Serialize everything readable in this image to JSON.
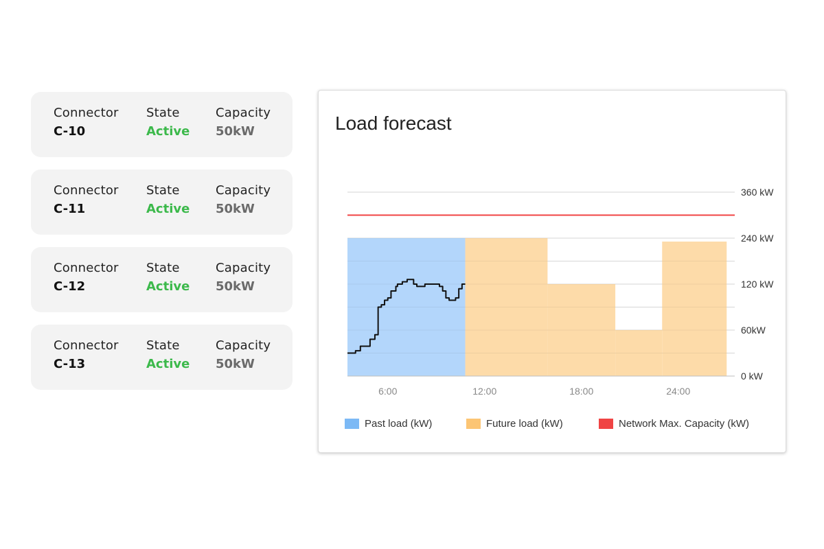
{
  "connectors": [
    {
      "connector_label": "Connector",
      "id": "C-10",
      "state_label": "State",
      "state": "Active",
      "capacity_label": "Capacity",
      "capacity": "50kW"
    },
    {
      "connector_label": "Connector",
      "id": "C-11",
      "state_label": "State",
      "state": "Active",
      "capacity_label": "Capacity",
      "capacity": "50kW"
    },
    {
      "connector_label": "Connector",
      "id": "C-12",
      "state_label": "State",
      "state": "Active",
      "capacity_label": "Capacity",
      "capacity": "50kW"
    },
    {
      "connector_label": "Connector",
      "id": "C-13",
      "state_label": "State",
      "state": "Active",
      "capacity_label": "Capacity",
      "capacity": "50kW"
    }
  ],
  "colors": {
    "active": "#3cb94b",
    "capacity_value": "#6a6a6a",
    "past": "#b3d6fb",
    "future": "#fddba9",
    "past_legend": "#7cb9f5",
    "future_legend": "#fcc574",
    "network": "#f04444",
    "load_line": "#111111"
  },
  "chart": {
    "title": "Load forecast",
    "legend": [
      "Past load (kW)",
      "Future load (kW)",
      "Network Max. Capacity (kW)"
    ],
    "chart_data": {
      "type": "area",
      "x_range_hours": [
        3.5,
        27.5
      ],
      "x_ticks": [
        {
          "value": 6,
          "label": "6:00"
        },
        {
          "value": 12,
          "label": "12:00"
        },
        {
          "value": 18,
          "label": "18:00"
        },
        {
          "value": 24,
          "label": "24:00"
        }
      ],
      "y_ticks": [
        {
          "label": "0 kW"
        },
        {
          "label": "60kW"
        },
        {
          "label": "120 kW"
        },
        {
          "label": "240 kW"
        },
        {
          "label": "360 kW"
        }
      ],
      "network_max_capacity_level": 7,
      "past_load_band": {
        "x_start": 3.5,
        "x_end": 10.8,
        "level": 6
      },
      "future_load_steps": [
        {
          "x_start": 10.8,
          "x_end": 15.9,
          "level": 6
        },
        {
          "x_start": 15.9,
          "x_end": 20.1,
          "level": 4
        },
        {
          "x_start": 20.1,
          "x_end": 23.0,
          "level": 2
        },
        {
          "x_start": 23.0,
          "x_end": 27.0,
          "level": 5.85
        }
      ],
      "past_load_line_levels": [
        [
          3.5,
          1.0
        ],
        [
          3.8,
          1.0
        ],
        [
          4.0,
          1.1
        ],
        [
          4.3,
          1.3
        ],
        [
          4.6,
          1.3
        ],
        [
          4.8,
          1.3
        ],
        [
          4.9,
          1.6
        ],
        [
          5.1,
          1.6
        ],
        [
          5.2,
          1.8
        ],
        [
          5.4,
          1.8
        ],
        [
          5.4,
          3.0
        ],
        [
          5.6,
          3.1
        ],
        [
          5.8,
          3.3
        ],
        [
          5.9,
          3.3
        ],
        [
          6.0,
          3.4
        ],
        [
          6.2,
          3.4
        ],
        [
          6.2,
          3.7
        ],
        [
          6.4,
          3.7
        ],
        [
          6.5,
          3.9
        ],
        [
          6.6,
          4.0
        ],
        [
          6.8,
          4.0
        ],
        [
          6.9,
          4.1
        ],
        [
          7.1,
          4.1
        ],
        [
          7.2,
          4.2
        ],
        [
          7.5,
          4.2
        ],
        [
          7.6,
          4.0
        ],
        [
          7.8,
          3.9
        ],
        [
          8.0,
          3.9
        ],
        [
          8.2,
          3.9
        ],
        [
          8.3,
          4.0
        ],
        [
          8.5,
          4.0
        ],
        [
          8.6,
          4.0
        ],
        [
          8.9,
          4.0
        ],
        [
          9.0,
          4.0
        ],
        [
          9.2,
          3.9
        ],
        [
          9.4,
          3.7
        ],
        [
          9.6,
          3.4
        ],
        [
          9.8,
          3.3
        ],
        [
          10.0,
          3.3
        ],
        [
          10.2,
          3.4
        ],
        [
          10.4,
          3.8
        ],
        [
          10.6,
          4.0
        ],
        [
          10.8,
          4.0
        ]
      ]
    }
  }
}
